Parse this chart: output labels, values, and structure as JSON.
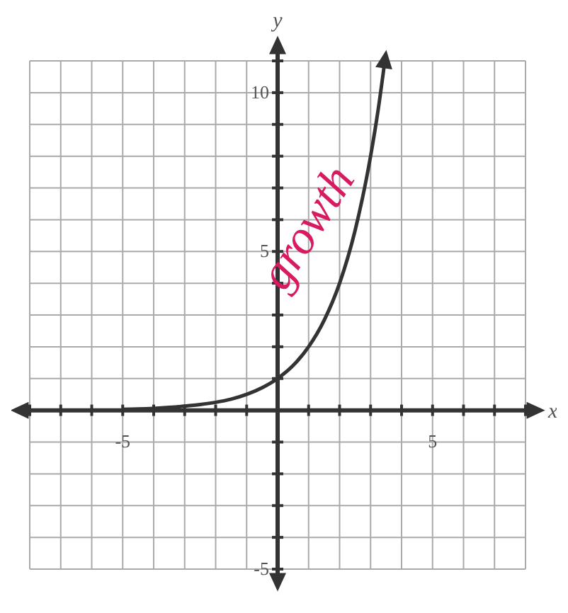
{
  "chart_data": {
    "type": "line",
    "xlabel": "x",
    "ylabel": "y",
    "x": [
      -5,
      -4.5,
      -4,
      -3.5,
      -3,
      -2.5,
      -2,
      -1.5,
      -1,
      -0.5,
      0,
      0.5,
      1,
      1.5,
      2,
      2.5,
      3,
      3.25,
      3.46
    ],
    "series": [
      {
        "color": "#333333",
        "values": [
          0.03,
          0.04,
          0.06,
          0.09,
          0.13,
          0.18,
          0.25,
          0.35,
          0.5,
          0.71,
          1,
          1.41,
          2,
          2.83,
          4,
          5.66,
          8,
          9.5,
          11
        ]
      }
    ],
    "xlim": [
      -8,
      8
    ],
    "xticks": [
      {
        "value": -8,
        "label": null
      },
      {
        "value": -7,
        "label": null
      },
      {
        "value": -6,
        "label": null
      },
      -5,
      {
        "value": -4,
        "label": null
      },
      {
        "value": -3,
        "label": null
      },
      {
        "value": -2,
        "label": null
      },
      {
        "value": -1,
        "label": null
      },
      {
        "value": 0,
        "label": null
      },
      {
        "value": 1,
        "label": null
      },
      {
        "value": 2,
        "label": null
      },
      {
        "value": 3,
        "label": null
      },
      {
        "value": 4,
        "label": null
      },
      5,
      {
        "value": 6,
        "label": null
      },
      {
        "value": 7,
        "label": null
      },
      {
        "value": 8,
        "label": null
      }
    ],
    "ylim": [
      -5,
      11
    ],
    "yticks": [
      -5,
      {
        "value": -4,
        "label": null
      },
      {
        "value": -3,
        "label": null
      },
      {
        "value": -2,
        "label": null
      },
      {
        "value": -1,
        "label": null
      },
      {
        "value": 0,
        "label": null
      },
      {
        "value": 1,
        "label": null
      },
      {
        "value": 2,
        "label": null
      },
      {
        "value": 3,
        "label": null
      },
      {
        "value": 4,
        "label": null
      },
      5,
      {
        "value": 6,
        "label": null
      },
      {
        "value": 7,
        "label": null
      },
      {
        "value": 8,
        "label": null
      },
      {
        "value": 9,
        "label": null
      },
      10,
      {
        "value": 11,
        "label": null
      }
    ],
    "grid": true,
    "marker": "none",
    "line_style": "solid",
    "annotations": [
      "growth"
    ]
  }
}
